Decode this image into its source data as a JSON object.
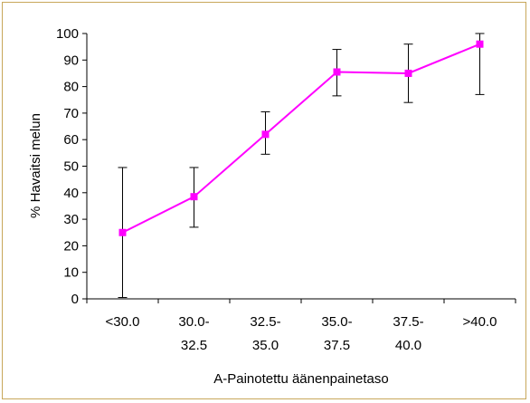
{
  "chart_data": {
    "type": "line",
    "title": "",
    "xlabel": "A-Painotettu äänenpainetaso",
    "ylabel": "% Havaitsi melun",
    "ylim": [
      0,
      100
    ],
    "yticks": [
      0,
      10,
      20,
      30,
      40,
      50,
      60,
      70,
      80,
      90,
      100
    ],
    "categories": [
      [
        "<30.0"
      ],
      [
        "30.0-",
        "32.5"
      ],
      [
        "32.5-",
        "35.0"
      ],
      [
        "35.0-",
        "37.5"
      ],
      [
        "37.5-",
        "40.0"
      ],
      [
        ">40.0"
      ]
    ],
    "series": [
      {
        "values": [
          25,
          38.5,
          62,
          85.5,
          85,
          96
        ],
        "err_low": [
          0.5,
          27,
          54.5,
          76.5,
          74,
          77
        ],
        "err_high": [
          49.5,
          49.5,
          70.5,
          94,
          96,
          100
        ],
        "color": "#ff00ff"
      }
    ],
    "grid": false,
    "legend": "none"
  },
  "colors": {
    "line": "#ff00ff",
    "marker": "#ff00ff",
    "errorbar": "#000000",
    "axis": "#000000",
    "frame": "#c8a75a"
  }
}
